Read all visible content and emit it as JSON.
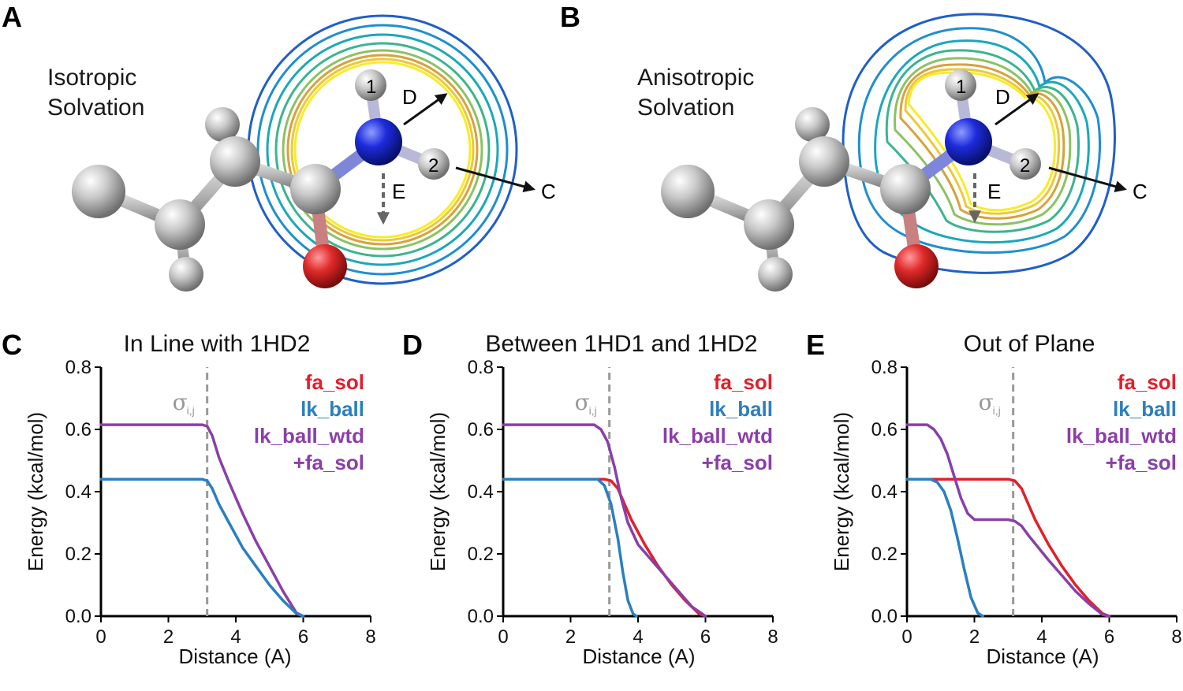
{
  "panels": {
    "a": {
      "letter": "A",
      "label_line1": "Isotropic",
      "label_line2": "Solvation"
    },
    "b": {
      "letter": "B",
      "label_line1": "Anisotropic",
      "label_line2": "Solvation"
    }
  },
  "molecule": {
    "h1": "1",
    "h2": "2",
    "arrow_d": "D",
    "arrow_c": "C",
    "arrow_e": "E"
  },
  "contour_colors": [
    "#1f5fc9",
    "#1e8fd0",
    "#1aa8b9",
    "#3cb48f",
    "#8bc262",
    "#d7a23d",
    "#ecc93a",
    "#f7ec2a"
  ],
  "colors": {
    "fa_sol": "#e0202a",
    "lk_ball": "#2a7fc1",
    "lk_ball_wtd": "#8a3fa8",
    "sigma": "#999999"
  },
  "legend": {
    "fa_sol": "fa_sol",
    "lk_ball": "lk_ball",
    "lk_ball_wtd": "lk_ball_wtd",
    "fa_sol2": "+fa_sol"
  },
  "sigma": {
    "symbol": "σ",
    "sub": "i,j"
  },
  "chart_data": [
    {
      "letter": "C",
      "type": "line",
      "title": "In Line with 1HD2",
      "xlabel": "Distance (A)",
      "ylabel": "Energy (kcal/mol)",
      "xlim": [
        0,
        8
      ],
      "ylim": [
        0,
        0.8
      ],
      "xticks": [
        "0",
        "2",
        "4",
        "6",
        "8"
      ],
      "yticks": [
        "0.0",
        "0.2",
        "0.4",
        "0.6",
        "0.8"
      ],
      "sigma_x": 3.15,
      "series": [
        {
          "name": "lk_ball_wtd +fa_sol",
          "color_key": "lk_ball_wtd",
          "x": [
            0,
            3.0,
            3.15,
            3.3,
            3.5,
            3.8,
            4.2,
            4.6,
            5.0,
            5.4,
            5.8,
            6.0
          ],
          "y": [
            0.615,
            0.615,
            0.61,
            0.58,
            0.51,
            0.43,
            0.33,
            0.24,
            0.16,
            0.08,
            0.01,
            0.0
          ]
        },
        {
          "name": "lk_ball",
          "color_key": "lk_ball",
          "x": [
            0,
            3.0,
            3.15,
            3.3,
            3.5,
            3.8,
            4.2,
            4.6,
            5.0,
            5.4,
            5.8,
            6.0
          ],
          "y": [
            0.44,
            0.44,
            0.435,
            0.41,
            0.36,
            0.3,
            0.22,
            0.16,
            0.1,
            0.05,
            0.008,
            0.0
          ]
        }
      ]
    },
    {
      "letter": "D",
      "type": "line",
      "title": "Between 1HD1 and 1HD2",
      "xlabel": "Distance (A)",
      "ylabel": "Energy (kcal/mol)",
      "xlim": [
        0,
        8
      ],
      "ylim": [
        0,
        0.8
      ],
      "xticks": [
        "0",
        "2",
        "4",
        "6",
        "8"
      ],
      "yticks": [
        "0.0",
        "0.2",
        "0.4",
        "0.6",
        "0.8"
      ],
      "sigma_x": 3.15,
      "series": [
        {
          "name": "fa_sol",
          "color_key": "fa_sol",
          "x": [
            0,
            3.0,
            3.2,
            3.4,
            3.6,
            3.8,
            4.2,
            4.6,
            5.0,
            5.4,
            5.8,
            6.0
          ],
          "y": [
            0.44,
            0.44,
            0.435,
            0.41,
            0.36,
            0.31,
            0.23,
            0.16,
            0.1,
            0.05,
            0.008,
            0.0
          ]
        },
        {
          "name": "lk_ball",
          "color_key": "lk_ball",
          "x": [
            0,
            2.8,
            3.0,
            3.2,
            3.4,
            3.55,
            3.7,
            3.85,
            3.95
          ],
          "y": [
            0.44,
            0.44,
            0.42,
            0.36,
            0.25,
            0.14,
            0.05,
            0.008,
            0.0
          ]
        },
        {
          "name": "lk_ball_wtd +fa_sol",
          "color_key": "lk_ball_wtd",
          "x": [
            0,
            2.7,
            2.9,
            3.1,
            3.3,
            3.5,
            3.7,
            4.0,
            4.4,
            4.8,
            5.2,
            5.6,
            6.0
          ],
          "y": [
            0.615,
            0.615,
            0.6,
            0.56,
            0.48,
            0.38,
            0.3,
            0.23,
            0.18,
            0.13,
            0.08,
            0.03,
            0.0
          ]
        }
      ]
    },
    {
      "letter": "E",
      "type": "line",
      "title": "Out of Plane",
      "xlabel": "Distance (A)",
      "ylabel": "Energy (kcal/mol)",
      "xlim": [
        0,
        8
      ],
      "ylim": [
        0,
        0.8
      ],
      "xticks": [
        "0",
        "2",
        "4",
        "6",
        "8"
      ],
      "yticks": [
        "0.0",
        "0.2",
        "0.4",
        "0.6",
        "0.8"
      ],
      "sigma_x": 3.15,
      "series": [
        {
          "name": "fa_sol",
          "color_key": "fa_sol",
          "x": [
            0,
            3.0,
            3.2,
            3.4,
            3.6,
            3.8,
            4.2,
            4.6,
            5.0,
            5.4,
            5.8,
            6.0
          ],
          "y": [
            0.44,
            0.44,
            0.435,
            0.41,
            0.36,
            0.31,
            0.23,
            0.16,
            0.1,
            0.05,
            0.008,
            0.0
          ]
        },
        {
          "name": "lk_ball",
          "color_key": "lk_ball",
          "x": [
            0,
            0.7,
            0.9,
            1.1,
            1.3,
            1.5,
            1.7,
            1.9,
            2.1,
            2.25
          ],
          "y": [
            0.44,
            0.44,
            0.43,
            0.4,
            0.34,
            0.25,
            0.15,
            0.06,
            0.01,
            0.0
          ]
        },
        {
          "name": "lk_ball_wtd +fa_sol",
          "color_key": "lk_ball_wtd",
          "x": [
            0,
            0.6,
            0.8,
            1.0,
            1.2,
            1.4,
            1.6,
            1.8,
            2.0,
            2.4,
            3.0,
            3.2,
            3.4,
            3.6,
            3.9,
            4.2,
            4.6,
            5.0,
            5.4,
            5.8,
            6.0
          ],
          "y": [
            0.615,
            0.615,
            0.6,
            0.57,
            0.52,
            0.45,
            0.38,
            0.33,
            0.31,
            0.31,
            0.31,
            0.305,
            0.29,
            0.26,
            0.22,
            0.18,
            0.13,
            0.08,
            0.04,
            0.005,
            0.0
          ]
        }
      ]
    }
  ]
}
